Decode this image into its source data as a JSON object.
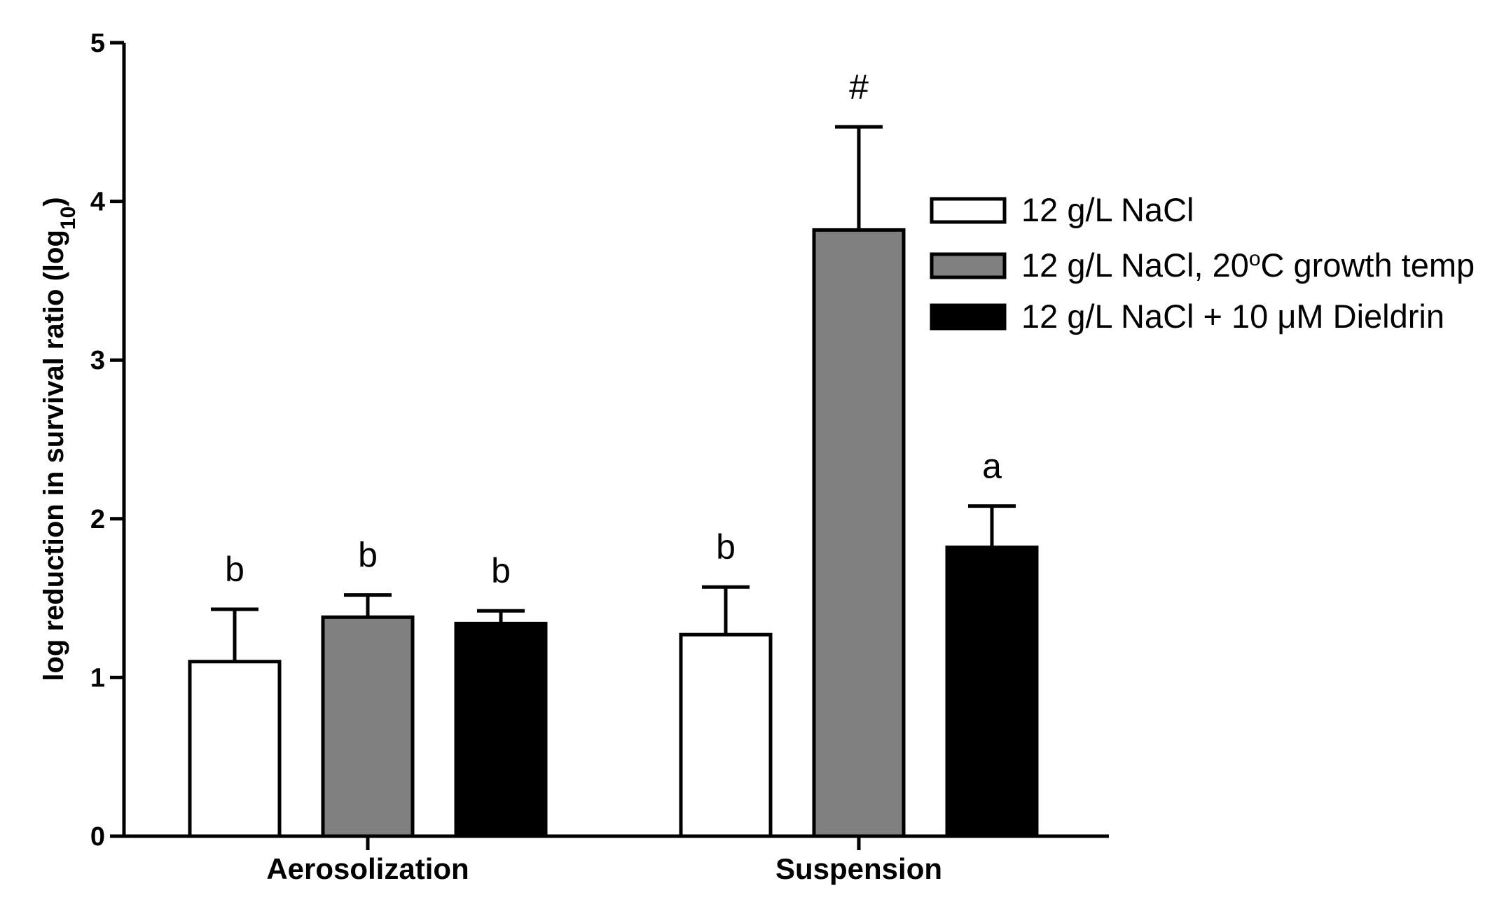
{
  "chart_data": {
    "type": "bar",
    "title": "",
    "xlabel": "",
    "ylabel": {
      "main": "log reduction in survival ratio (log",
      "sub": "10",
      "close": ")"
    },
    "ylim": [
      0,
      5
    ],
    "yticks": [
      "0",
      "1",
      "2",
      "3",
      "4",
      "5"
    ],
    "grid": false,
    "legend_position": "top-right",
    "categories": [
      "Aerosolization",
      "Suspension"
    ],
    "series": [
      {
        "name": "12 g/L NaCl",
        "legend_parts": [
          "12 g/L NaCl"
        ],
        "color": "#ffffff",
        "values": [
          1.1,
          1.27
        ],
        "errors": [
          0.33,
          0.3
        ],
        "annotations": [
          "b",
          "b"
        ]
      },
      {
        "name": "12 g/L NaCl, 20°C growth temp",
        "legend_parts": [
          "12 g/L NaCl, 20",
          "o",
          "C growth temp"
        ],
        "color": "#808080",
        "values": [
          1.38,
          3.82
        ],
        "errors": [
          0.14,
          0.65
        ],
        "annotations": [
          "b",
          "#"
        ]
      },
      {
        "name": "12 g/L NaCl + 10 μM Dieldrin",
        "legend_parts": [
          "12 g/L NaCl + 10 μM Dieldrin"
        ],
        "color": "#000000",
        "values": [
          1.34,
          1.82
        ],
        "errors": [
          0.08,
          0.26
        ],
        "annotations": [
          "b",
          "a"
        ]
      }
    ]
  }
}
